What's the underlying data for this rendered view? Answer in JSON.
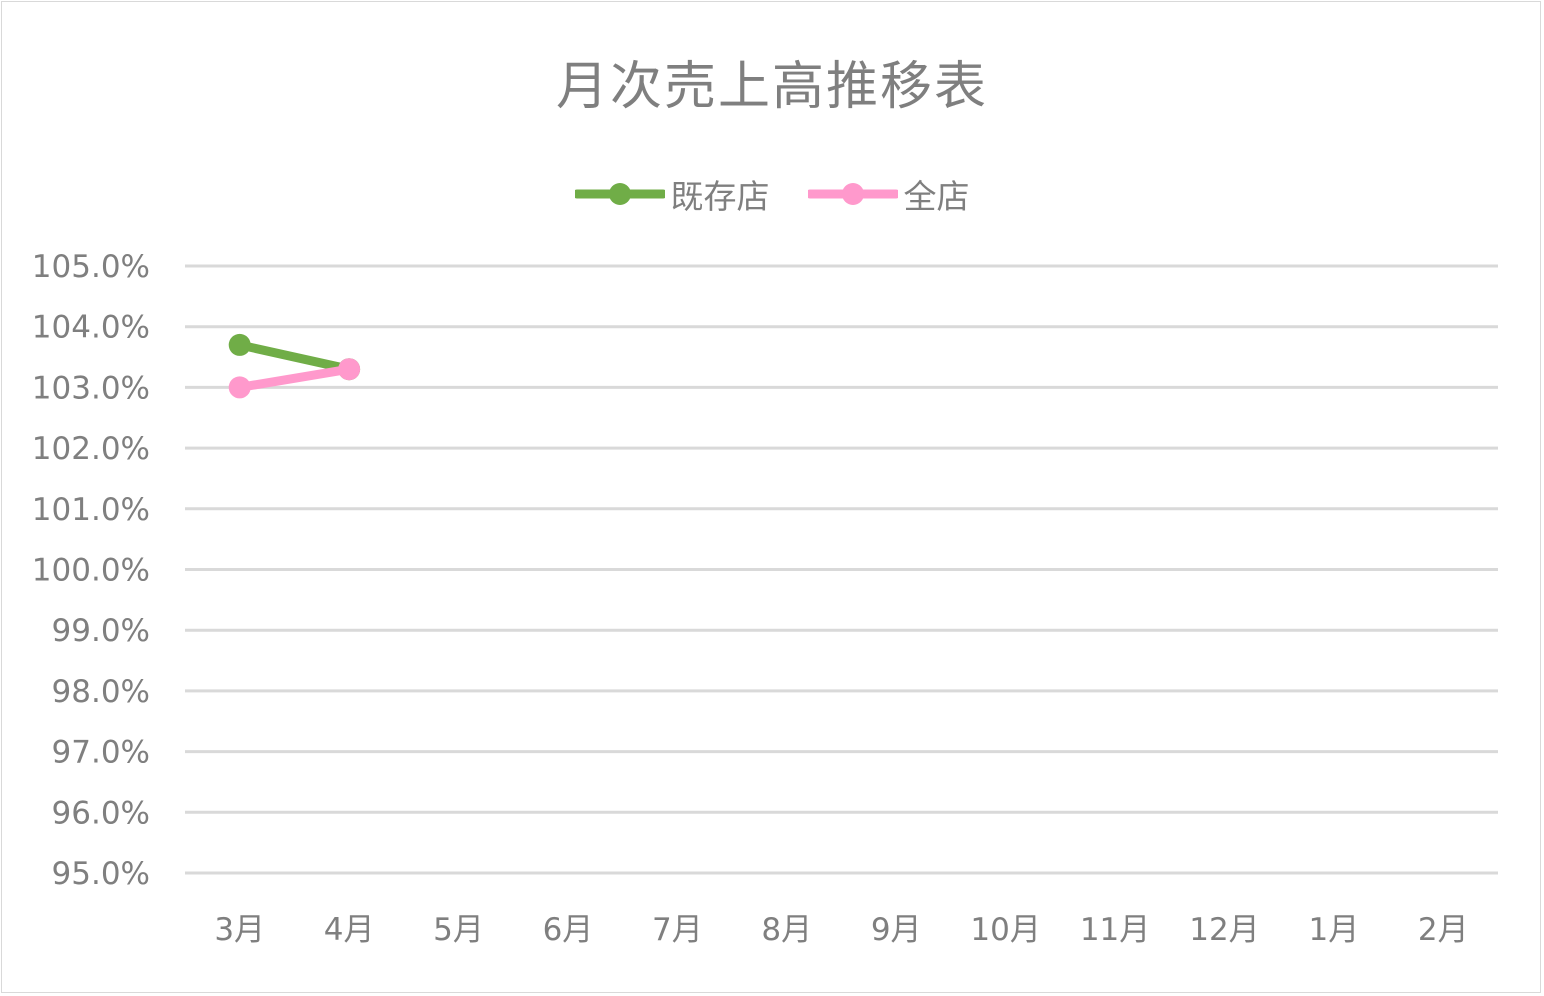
{
  "chart_data": {
    "type": "line",
    "title": "月次売上高推移表",
    "categories": [
      "3月",
      "4月",
      "5月",
      "6月",
      "7月",
      "8月",
      "9月",
      "10月",
      "11月",
      "12月",
      "1月",
      "2月"
    ],
    "series": [
      {
        "name": "既存店",
        "color": "#70AD47",
        "values": [
          103.7,
          103.3,
          null,
          null,
          null,
          null,
          null,
          null,
          null,
          null,
          null,
          null
        ]
      },
      {
        "name": "全店",
        "color": "#FF99CC",
        "values": [
          103.0,
          103.3,
          null,
          null,
          null,
          null,
          null,
          null,
          null,
          null,
          null,
          null
        ]
      }
    ],
    "y_ticks": [
      "105.0%",
      "104.0%",
      "103.0%",
      "102.0%",
      "101.0%",
      "100.0%",
      "99.0%",
      "98.0%",
      "97.0%",
      "96.0%",
      "95.0%"
    ],
    "ylim": [
      95,
      105
    ],
    "xlabel": "",
    "ylabel": "",
    "grid": true,
    "legend_position": "top"
  }
}
